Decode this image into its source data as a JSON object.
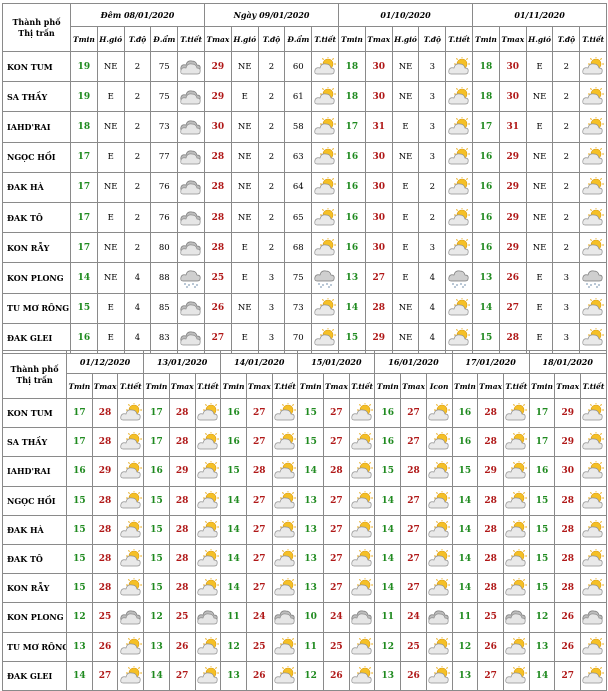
{
  "colors": {
    "tmin": "#1f8a1f",
    "tmax": "#b01818",
    "border": "#8a8a8a"
  },
  "table1": {
    "city_header_line1": "Thành phố",
    "city_header_line2": "Thị trấn",
    "dates": [
      "Đêm 08/01/2020",
      "Ngày 09/01/2020",
      "01/10/2020",
      "01/11/2020"
    ],
    "headers": [
      [
        "Tmin",
        "H.gió",
        "T.độ",
        "Đ.ẩm",
        "T.tiết"
      ],
      [
        "Tmax",
        "H.gió",
        "T.độ",
        "Đ.ẩm",
        "T.tiết"
      ],
      [
        "Tmin",
        "Tmax",
        "H.gió",
        "T.độ",
        "T.tiết"
      ],
      [
        "Tmin",
        "Tmax",
        "H.gió",
        "T.độ",
        "T.tiết"
      ]
    ],
    "rows": [
      {
        "city": "KON TUM",
        "night": [
          "19",
          "NE",
          "2",
          "75"
        ],
        "night_icon": "cloudy-icon",
        "day": [
          "29",
          "NE",
          "2",
          "60"
        ],
        "day_icon": "sun-cloud-icon",
        "d3": [
          "18",
          "30",
          "NE",
          "3"
        ],
        "d3_icon": "sun-cloud-icon",
        "d4": [
          "18",
          "30",
          "E",
          "2"
        ],
        "d4_icon": "sun-cloud-icon"
      },
      {
        "city": "SA THẦY",
        "night": [
          "19",
          "E",
          "2",
          "75"
        ],
        "night_icon": "cloudy-icon",
        "day": [
          "29",
          "E",
          "2",
          "61"
        ],
        "day_icon": "sun-cloud-icon",
        "d3": [
          "18",
          "30",
          "NE",
          "3"
        ],
        "d3_icon": "sun-cloud-icon",
        "d4": [
          "18",
          "30",
          "NE",
          "2"
        ],
        "d4_icon": "sun-cloud-icon"
      },
      {
        "city": "IAHD'RAI",
        "night": [
          "18",
          "NE",
          "2",
          "73"
        ],
        "night_icon": "cloudy-icon",
        "day": [
          "30",
          "NE",
          "2",
          "58"
        ],
        "day_icon": "sun-cloud-icon",
        "d3": [
          "17",
          "31",
          "E",
          "3"
        ],
        "d3_icon": "sun-cloud-icon",
        "d4": [
          "17",
          "31",
          "E",
          "2"
        ],
        "d4_icon": "sun-cloud-icon"
      },
      {
        "city": "NGỌC HỒI",
        "night": [
          "17",
          "E",
          "2",
          "77"
        ],
        "night_icon": "cloudy-icon",
        "day": [
          "28",
          "NE",
          "2",
          "63"
        ],
        "day_icon": "sun-cloud-icon",
        "d3": [
          "16",
          "30",
          "NE",
          "3"
        ],
        "d3_icon": "sun-cloud-icon",
        "d4": [
          "16",
          "29",
          "NE",
          "2"
        ],
        "d4_icon": "sun-cloud-icon"
      },
      {
        "city": "ĐAK HÀ",
        "night": [
          "17",
          "NE",
          "2",
          "76"
        ],
        "night_icon": "cloudy-icon",
        "day": [
          "28",
          "NE",
          "2",
          "64"
        ],
        "day_icon": "sun-cloud-icon",
        "d3": [
          "16",
          "30",
          "E",
          "2"
        ],
        "d3_icon": "sun-cloud-icon",
        "d4": [
          "16",
          "29",
          "NE",
          "2"
        ],
        "d4_icon": "sun-cloud-icon"
      },
      {
        "city": "ĐAK TÔ",
        "night": [
          "17",
          "E",
          "2",
          "76"
        ],
        "night_icon": "cloudy-icon",
        "day": [
          "28",
          "NE",
          "2",
          "65"
        ],
        "day_icon": "sun-cloud-icon",
        "d3": [
          "16",
          "30",
          "E",
          "2"
        ],
        "d3_icon": "sun-cloud-icon",
        "d4": [
          "16",
          "29",
          "NE",
          "2"
        ],
        "d4_icon": "sun-cloud-icon"
      },
      {
        "city": "KON RẪY",
        "night": [
          "17",
          "NE",
          "2",
          "80"
        ],
        "night_icon": "cloudy-icon",
        "day": [
          "28",
          "E",
          "2",
          "68"
        ],
        "day_icon": "sun-cloud-icon",
        "d3": [
          "16",
          "30",
          "E",
          "3"
        ],
        "d3_icon": "sun-cloud-icon",
        "d4": [
          "16",
          "29",
          "NE",
          "2"
        ],
        "d4_icon": "sun-cloud-icon"
      },
      {
        "city": "KON PLONG",
        "night": [
          "14",
          "NE",
          "4",
          "88"
        ],
        "night_icon": "rain-cloud-icon",
        "day": [
          "25",
          "E",
          "3",
          "75"
        ],
        "day_icon": "rain-cloud-icon",
        "d3": [
          "13",
          "27",
          "E",
          "4"
        ],
        "d3_icon": "rain-cloud-icon",
        "d4": [
          "13",
          "26",
          "E",
          "3"
        ],
        "d4_icon": "rain-cloud-icon"
      },
      {
        "city": "TU MƠ RÔNG",
        "night": [
          "15",
          "E",
          "4",
          "85"
        ],
        "night_icon": "cloudy-icon",
        "day": [
          "26",
          "NE",
          "3",
          "73"
        ],
        "day_icon": "sun-cloud-icon",
        "d3": [
          "14",
          "28",
          "NE",
          "4"
        ],
        "d3_icon": "sun-cloud-icon",
        "d4": [
          "14",
          "27",
          "E",
          "3"
        ],
        "d4_icon": "sun-cloud-icon"
      },
      {
        "city": "ĐAK GLEI",
        "night": [
          "16",
          "E",
          "4",
          "83"
        ],
        "night_icon": "cloudy-icon",
        "day": [
          "27",
          "E",
          "3",
          "70"
        ],
        "day_icon": "sun-cloud-icon",
        "d3": [
          "15",
          "29",
          "NE",
          "4"
        ],
        "d3_icon": "sun-cloud-icon",
        "d4": [
          "15",
          "28",
          "E",
          "3"
        ],
        "d4_icon": "sun-cloud-icon"
      }
    ]
  },
  "table2": {
    "city_header_line1": "Thành phố",
    "city_header_line2": "Thị trấn",
    "dates": [
      "01/12/2020",
      "13/01/2020",
      "14/01/2020",
      "15/01/2020",
      "16/01/2020",
      "17/01/2020",
      "18/01/2020"
    ],
    "headers": [
      [
        "Tmin",
        "Tmax",
        "T.tiết"
      ],
      [
        "Tmin",
        "Tmax",
        "T.tiết"
      ],
      [
        "Tmin",
        "Tmax",
        "T.tiết"
      ],
      [
        "Tmin",
        "Tmax",
        "T.tiết"
      ],
      [
        "Tmin",
        "Tmax",
        "Icon"
      ],
      [
        "Tmin",
        "Tmax",
        "T.tiết"
      ],
      [
        "Tmin",
        "Tmax",
        "T.tiết"
      ]
    ],
    "rows": [
      {
        "city": "KON TUM",
        "days": [
          [
            "17",
            "28"
          ],
          [
            "17",
            "28"
          ],
          [
            "16",
            "27"
          ],
          [
            "15",
            "27"
          ],
          [
            "16",
            "27"
          ],
          [
            "16",
            "28"
          ],
          [
            "17",
            "29"
          ]
        ],
        "icons": [
          "sun-cloud-icon",
          "sun-cloud-icon",
          "sun-cloud-icon",
          "sun-cloud-icon",
          "sun-cloud-icon",
          "sun-cloud-icon",
          "sun-cloud-icon"
        ]
      },
      {
        "city": "SA THẦY",
        "days": [
          [
            "17",
            "28"
          ],
          [
            "17",
            "28"
          ],
          [
            "16",
            "27"
          ],
          [
            "15",
            "27"
          ],
          [
            "16",
            "27"
          ],
          [
            "16",
            "28"
          ],
          [
            "17",
            "29"
          ]
        ],
        "icons": [
          "sun-cloud-icon",
          "sun-cloud-icon",
          "sun-cloud-icon",
          "sun-cloud-icon",
          "sun-cloud-icon",
          "sun-cloud-icon",
          "sun-cloud-icon"
        ]
      },
      {
        "city": "IAHD'RAI",
        "days": [
          [
            "16",
            "29"
          ],
          [
            "16",
            "29"
          ],
          [
            "15",
            "28"
          ],
          [
            "14",
            "28"
          ],
          [
            "15",
            "28"
          ],
          [
            "15",
            "29"
          ],
          [
            "16",
            "30"
          ]
        ],
        "icons": [
          "sun-cloud-icon",
          "sun-cloud-icon",
          "sun-cloud-icon",
          "sun-cloud-icon",
          "sun-cloud-icon",
          "sun-cloud-icon",
          "sun-cloud-icon"
        ]
      },
      {
        "city": "NGỌC HỒI",
        "days": [
          [
            "15",
            "28"
          ],
          [
            "15",
            "28"
          ],
          [
            "14",
            "27"
          ],
          [
            "13",
            "27"
          ],
          [
            "14",
            "27"
          ],
          [
            "14",
            "28"
          ],
          [
            "15",
            "28"
          ]
        ],
        "icons": [
          "sun-cloud-icon",
          "sun-cloud-icon",
          "sun-cloud-icon",
          "sun-cloud-icon",
          "sun-cloud-icon",
          "sun-cloud-icon",
          "sun-cloud-icon"
        ]
      },
      {
        "city": "ĐAK HÀ",
        "days": [
          [
            "15",
            "28"
          ],
          [
            "15",
            "28"
          ],
          [
            "14",
            "27"
          ],
          [
            "13",
            "27"
          ],
          [
            "14",
            "27"
          ],
          [
            "14",
            "28"
          ],
          [
            "15",
            "28"
          ]
        ],
        "icons": [
          "sun-cloud-icon",
          "sun-cloud-icon",
          "sun-cloud-icon",
          "sun-cloud-icon",
          "sun-cloud-icon",
          "sun-cloud-icon",
          "sun-cloud-icon"
        ]
      },
      {
        "city": "ĐAK TÔ",
        "days": [
          [
            "15",
            "28"
          ],
          [
            "15",
            "28"
          ],
          [
            "14",
            "27"
          ],
          [
            "13",
            "27"
          ],
          [
            "14",
            "27"
          ],
          [
            "14",
            "28"
          ],
          [
            "15",
            "28"
          ]
        ],
        "icons": [
          "sun-cloud-icon",
          "sun-cloud-icon",
          "sun-cloud-icon",
          "sun-cloud-icon",
          "sun-cloud-icon",
          "sun-cloud-icon",
          "sun-cloud-icon"
        ]
      },
      {
        "city": "KON RẪY",
        "days": [
          [
            "15",
            "28"
          ],
          [
            "15",
            "28"
          ],
          [
            "14",
            "27"
          ],
          [
            "13",
            "27"
          ],
          [
            "14",
            "27"
          ],
          [
            "14",
            "28"
          ],
          [
            "15",
            "28"
          ]
        ],
        "icons": [
          "sun-cloud-icon",
          "sun-cloud-icon",
          "sun-cloud-icon",
          "sun-cloud-icon",
          "sun-cloud-icon",
          "sun-cloud-icon",
          "sun-cloud-icon"
        ]
      },
      {
        "city": "KON PLONG",
        "days": [
          [
            "12",
            "25"
          ],
          [
            "12",
            "25"
          ],
          [
            "11",
            "24"
          ],
          [
            "10",
            "24"
          ],
          [
            "11",
            "24"
          ],
          [
            "11",
            "25"
          ],
          [
            "12",
            "26"
          ]
        ],
        "icons": [
          "cloudy-icon",
          "cloudy-icon",
          "cloudy-icon",
          "cloudy-icon",
          "cloudy-icon",
          "cloudy-icon",
          "cloudy-icon"
        ]
      },
      {
        "city": "TU MƠ RÔNG",
        "days": [
          [
            "13",
            "26"
          ],
          [
            "13",
            "26"
          ],
          [
            "12",
            "25"
          ],
          [
            "11",
            "25"
          ],
          [
            "12",
            "25"
          ],
          [
            "12",
            "26"
          ],
          [
            "13",
            "26"
          ]
        ],
        "icons": [
          "sun-cloud-icon",
          "sun-cloud-icon",
          "sun-cloud-icon",
          "sun-cloud-icon",
          "sun-cloud-icon",
          "sun-cloud-icon",
          "sun-cloud-icon"
        ]
      },
      {
        "city": "ĐAK GLEI",
        "days": [
          [
            "14",
            "27"
          ],
          [
            "14",
            "27"
          ],
          [
            "13",
            "26"
          ],
          [
            "12",
            "26"
          ],
          [
            "13",
            "26"
          ],
          [
            "13",
            "27"
          ],
          [
            "14",
            "27"
          ]
        ],
        "icons": [
          "sun-cloud-icon",
          "sun-cloud-icon",
          "sun-cloud-icon",
          "sun-cloud-icon",
          "sun-cloud-icon",
          "sun-cloud-icon",
          "sun-cloud-icon"
        ]
      }
    ]
  }
}
